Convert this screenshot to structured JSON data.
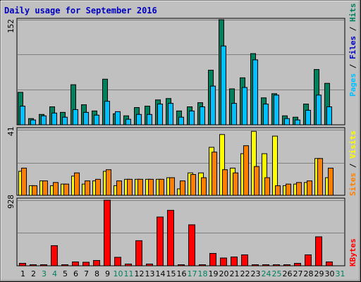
{
  "title": "Daily usage for September 2016",
  "colors": {
    "background": "#c0c0c0",
    "title": "#0000c0",
    "grid": "#808080",
    "hits": "#00805c",
    "files": "#00c0ff",
    "pages": "#00c0ff",
    "visits": "#ffff00",
    "sites": "#ff8000",
    "kbytes": "#ff0000",
    "weekend_label": "#00805c",
    "weekday_label": "#000000"
  },
  "chart_data": [
    {
      "type": "bar",
      "title": "Daily usage for September 2016",
      "panel": "hits",
      "axis_max_label": "152",
      "ylim": [
        0,
        152
      ],
      "categories": [
        "1",
        "2",
        "3",
        "4",
        "5",
        "6",
        "7",
        "8",
        "9",
        "10",
        "11",
        "12",
        "13",
        "14",
        "15",
        "16",
        "17",
        "18",
        "19",
        "20",
        "21",
        "22",
        "23",
        "24",
        "25",
        "26",
        "27",
        "28",
        "29",
        "30",
        "31"
      ],
      "weekend_days": [
        "3",
        "4",
        "10",
        "11",
        "17",
        "18",
        "24",
        "25",
        "31"
      ],
      "legend": {
        "left": "Pages",
        "sep1": " / ",
        "mid": "Files",
        "sep2": " / ",
        "right": "Hits"
      },
      "series": [
        {
          "name": "Hits",
          "values": [
            47,
            9,
            15,
            26,
            18,
            58,
            29,
            20,
            66,
            16,
            13,
            25,
            27,
            36,
            38,
            20,
            26,
            32,
            79,
            152,
            52,
            68,
            103,
            39,
            45,
            13,
            11,
            30,
            80,
            60,
            0
          ]
        },
        {
          "name": "Files",
          "values": [
            27,
            7,
            13,
            17,
            11,
            22,
            18,
            14,
            34,
            19,
            8,
            15,
            15,
            30,
            31,
            11,
            20,
            26,
            56,
            114,
            31,
            54,
            94,
            30,
            43,
            9,
            7,
            21,
            43,
            26,
            0
          ]
        },
        {
          "name": "Pages",
          "values": [
            0,
            0,
            0,
            0,
            0,
            0,
            0,
            0,
            0,
            0,
            0,
            0,
            0,
            0,
            0,
            0,
            0,
            0,
            0,
            0,
            0,
            0,
            0,
            0,
            0,
            0,
            0,
            0,
            0,
            0,
            0
          ]
        }
      ]
    },
    {
      "type": "bar",
      "panel": "visits",
      "axis_max_label": "41",
      "ylim": [
        0,
        41
      ],
      "categories": [
        "1",
        "2",
        "3",
        "4",
        "5",
        "6",
        "7",
        "8",
        "9",
        "10",
        "11",
        "12",
        "13",
        "14",
        "15",
        "16",
        "17",
        "18",
        "19",
        "20",
        "21",
        "22",
        "23",
        "24",
        "25",
        "26",
        "27",
        "28",
        "29",
        "30",
        "31"
      ],
      "legend": {
        "left": "Sites",
        "sep1": " / ",
        "right": "Visits"
      },
      "series": [
        {
          "name": "Visits",
          "values": [
            15,
            6,
            9,
            6,
            7,
            12,
            7,
            9,
            15,
            6,
            10,
            10,
            10,
            10,
            11,
            4,
            14,
            14,
            30,
            38,
            17,
            26,
            40,
            26,
            37,
            6,
            7,
            8,
            23,
            11,
            0
          ]
        },
        {
          "name": "Sites",
          "values": [
            17,
            6,
            9,
            8,
            7,
            14,
            9,
            10,
            16,
            9,
            10,
            10,
            10,
            10,
            11,
            9,
            13,
            11,
            27,
            16,
            14,
            31,
            18,
            11,
            6,
            7,
            8,
            9,
            23,
            17,
            0
          ]
        }
      ]
    },
    {
      "type": "bar",
      "panel": "kbytes",
      "axis_max_label": "928",
      "ylim": [
        0,
        928
      ],
      "categories": [
        "1",
        "2",
        "3",
        "4",
        "5",
        "6",
        "7",
        "8",
        "9",
        "10",
        "11",
        "12",
        "13",
        "14",
        "15",
        "16",
        "17",
        "18",
        "19",
        "20",
        "21",
        "22",
        "23",
        "24",
        "25",
        "26",
        "27",
        "28",
        "29",
        "30",
        "31"
      ],
      "legend": {
        "right": "KBytes"
      },
      "series": [
        {
          "name": "KBytes",
          "values": [
            35,
            15,
            15,
            285,
            15,
            55,
            50,
            75,
            928,
            120,
            25,
            355,
            25,
            690,
            785,
            15,
            580,
            15,
            175,
            110,
            125,
            155,
            15,
            15,
            15,
            15,
            35,
            155,
            410,
            55,
            0
          ]
        }
      ]
    }
  ]
}
